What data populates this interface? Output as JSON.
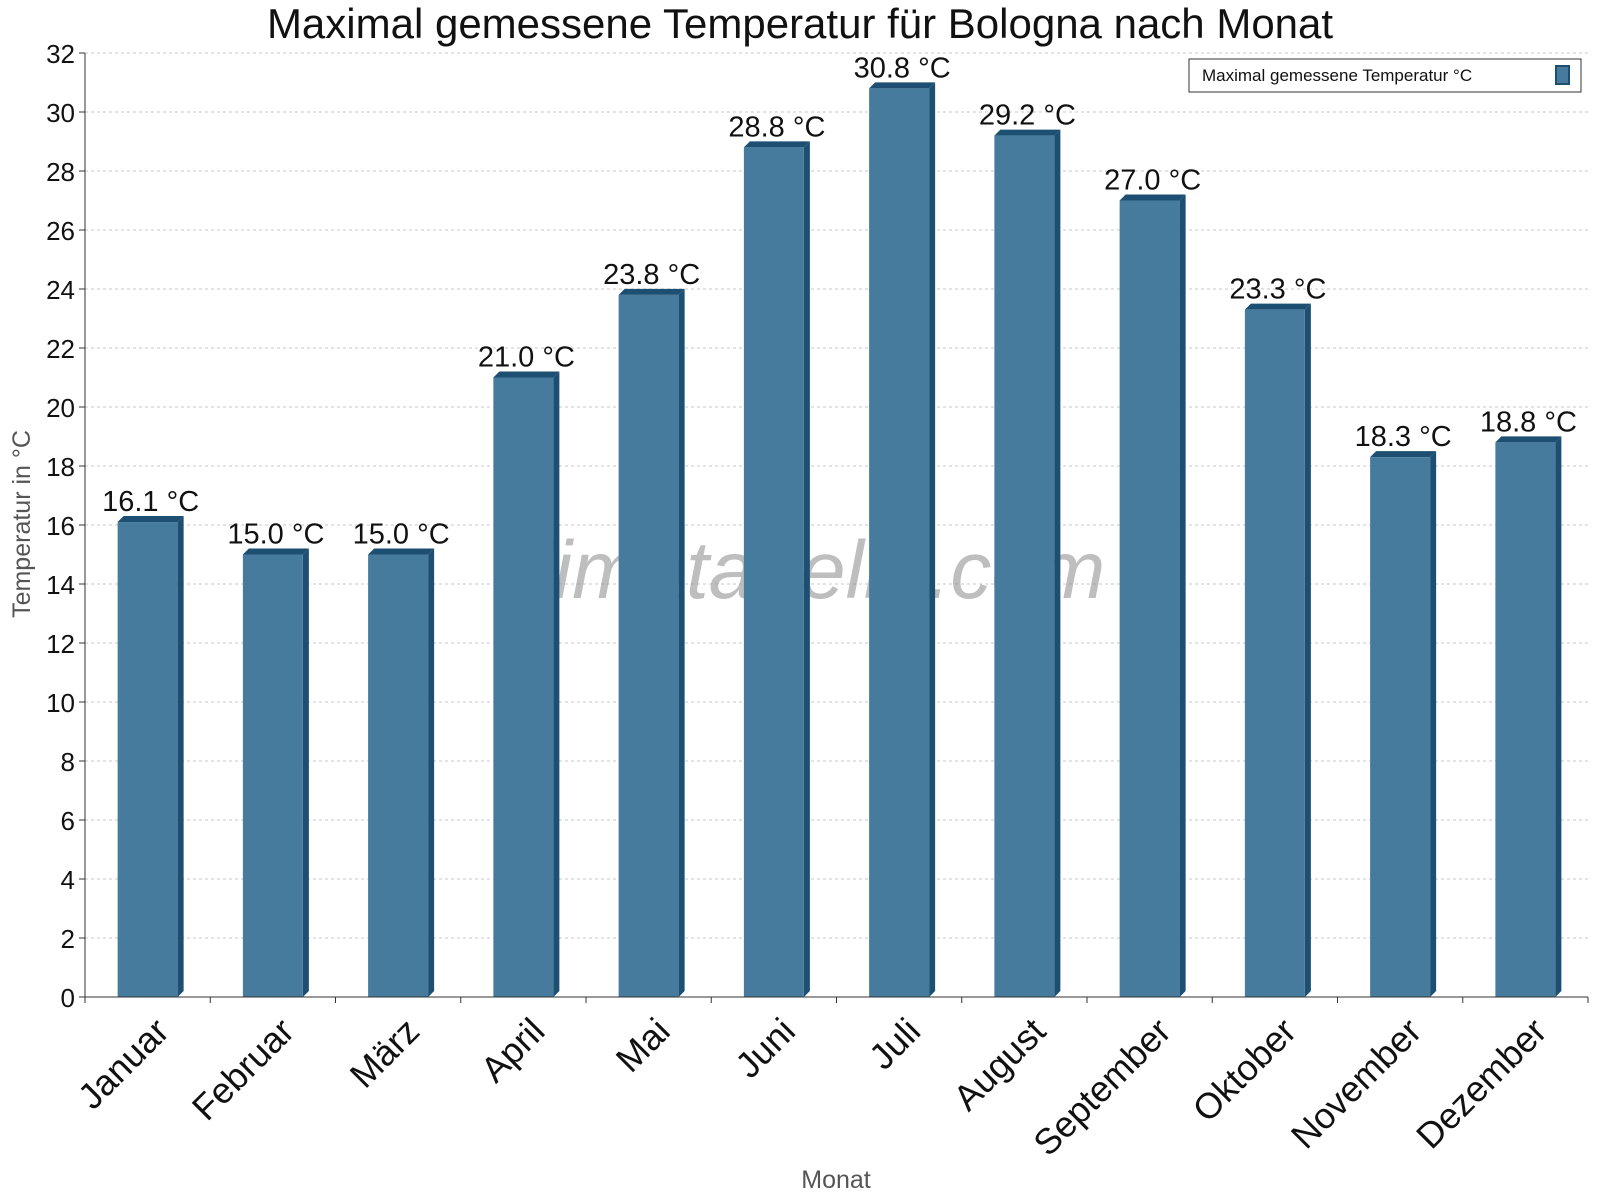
{
  "chart_data": {
    "type": "bar",
    "title": "Maximal gemessene Temperatur für Bologna nach Monat",
    "xlabel": "Monat",
    "ylabel": "Temperatur in °C",
    "categories": [
      "Januar",
      "Februar",
      "März",
      "April",
      "Mai",
      "Juni",
      "Juli",
      "August",
      "September",
      "Oktober",
      "November",
      "Dezember"
    ],
    "series": [
      {
        "name": "Maximal gemessene Temperatur °C",
        "values": [
          16.1,
          15.0,
          15.0,
          21.0,
          23.8,
          28.8,
          30.8,
          29.2,
          27.0,
          23.3,
          18.3,
          18.8
        ],
        "labels": [
          "16.1 °C",
          "15.0 °C",
          "15.0 °C",
          "21.0 °C",
          "23.8 °C",
          "28.8 °C",
          "30.8 °C",
          "29.2 °C",
          "27.0 °C",
          "23.3 °C",
          "18.3 °C",
          "18.8 °C"
        ],
        "color": "#467b9d",
        "side_color": "#1d4f72"
      }
    ],
    "ylim": [
      0,
      32
    ],
    "yticks": [
      0,
      2,
      4,
      6,
      8,
      10,
      12,
      14,
      16,
      18,
      20,
      22,
      24,
      26,
      28,
      30,
      32
    ],
    "grid": true,
    "legend_position": "top-right"
  },
  "watermark": "klimatabelle.com"
}
